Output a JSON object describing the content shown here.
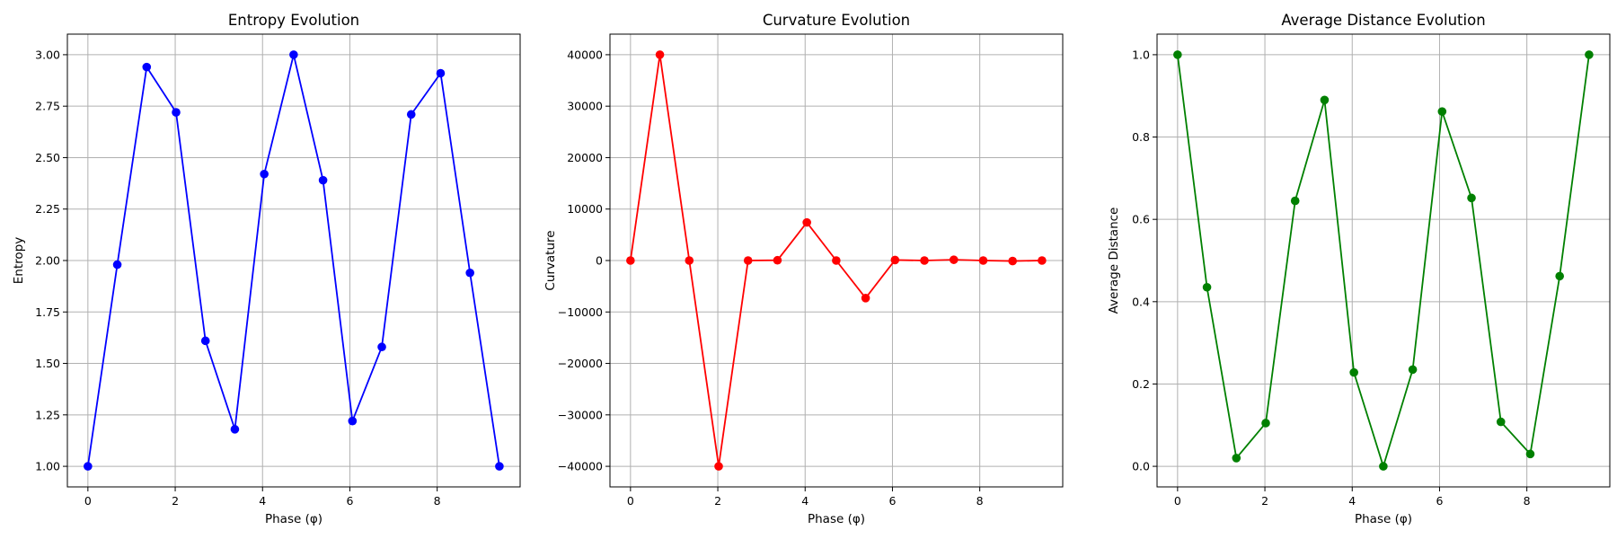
{
  "chart_data": [
    {
      "type": "line",
      "title": "Entropy Evolution",
      "xlabel": "Phase (φ)",
      "ylabel": "Entropy",
      "xlim": [
        -0.47,
        9.9
      ],
      "ylim": [
        0.9,
        3.1
      ],
      "xticks": [
        0,
        2,
        4,
        6,
        8
      ],
      "yticks": [
        1.0,
        1.25,
        1.5,
        1.75,
        2.0,
        2.25,
        2.5,
        2.75,
        3.0
      ],
      "ytick_labels": [
        "1.00",
        "1.25",
        "1.50",
        "1.75",
        "2.00",
        "2.25",
        "2.50",
        "2.75",
        "3.00"
      ],
      "grid": true,
      "color": "#0000ff",
      "series": [
        {
          "x": [
            0,
            0.6732,
            1.3464,
            2.0196,
            2.6928,
            3.366,
            4.0392,
            4.7124,
            5.3856,
            6.0588,
            6.732,
            7.4052,
            8.0784,
            8.7516,
            9.4248
          ],
          "y": [
            1.0,
            1.98,
            2.94,
            2.72,
            1.61,
            1.18,
            2.42,
            3.0,
            2.39,
            1.22,
            1.58,
            2.71,
            2.91,
            1.94,
            1.0
          ]
        }
      ]
    },
    {
      "type": "line",
      "title": "Curvature Evolution",
      "xlabel": "Phase (φ)",
      "ylabel": "Curvature",
      "xlim": [
        -0.47,
        9.9
      ],
      "ylim": [
        -44000,
        44000
      ],
      "xticks": [
        0,
        2,
        4,
        6,
        8
      ],
      "yticks": [
        -40000,
        -30000,
        -20000,
        -10000,
        0,
        10000,
        20000,
        30000,
        40000
      ],
      "ytick_labels": [
        "−40000",
        "−30000",
        "−20000",
        "−10000",
        "0",
        "10000",
        "20000",
        "30000",
        "40000"
      ],
      "grid": true,
      "color": "#ff0000",
      "series": [
        {
          "x": [
            0,
            0.6732,
            1.3464,
            2.0196,
            2.6928,
            3.366,
            4.0392,
            4.7124,
            5.3856,
            6.0588,
            6.732,
            7.4052,
            8.0784,
            8.7516,
            9.4248
          ],
          "y": [
            0,
            40000,
            0,
            -40000,
            0,
            50,
            7400,
            0,
            -7300,
            100,
            0,
            150,
            0,
            -100,
            0
          ]
        }
      ]
    },
    {
      "type": "line",
      "title": "Average Distance Evolution",
      "xlabel": "Phase (φ)",
      "ylabel": "Average Distance",
      "xlim": [
        -0.47,
        9.9
      ],
      "ylim": [
        -0.05,
        1.05
      ],
      "xticks": [
        0,
        2,
        4,
        6,
        8
      ],
      "yticks": [
        0.0,
        0.2,
        0.4,
        0.6,
        0.8,
        1.0
      ],
      "ytick_labels": [
        "0.0",
        "0.2",
        "0.4",
        "0.6",
        "0.8",
        "1.0"
      ],
      "grid": true,
      "color": "#008000",
      "series": [
        {
          "x": [
            0,
            0.6732,
            1.3464,
            2.0196,
            2.6928,
            3.366,
            4.0392,
            4.7124,
            5.3856,
            6.0588,
            6.732,
            7.4052,
            8.0784,
            8.7516,
            9.4248
          ],
          "y": [
            1.0,
            0.435,
            0.02,
            0.105,
            0.645,
            0.89,
            0.228,
            0.0,
            0.235,
            0.862,
            0.652,
            0.108,
            0.03,
            0.462,
            1.0
          ]
        }
      ]
    }
  ]
}
